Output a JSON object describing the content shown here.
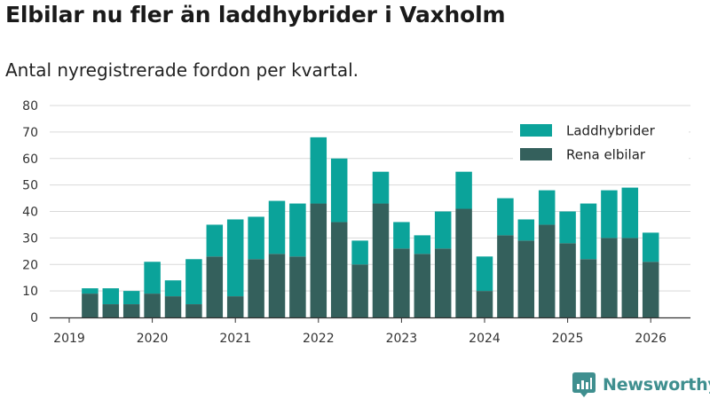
{
  "header": {
    "title": "Elbilar nu fler än laddhybrider i Vaxholm",
    "subtitle": "Antal nyregistrerade fordon per kvartal."
  },
  "brand": {
    "name": "Newsworthy"
  },
  "colors": {
    "laddhybrider": "#0ba39a",
    "rena_elbilar": "#34605c",
    "grid": "#d9d9d9",
    "axis": "#333333"
  },
  "chart_data": {
    "type": "bar",
    "stacked": true,
    "title": "Elbilar nu fler än laddhybrider i Vaxholm",
    "subtitle": "Antal nyregistrerade fordon per kvartal.",
    "xlabel": "",
    "ylabel": "",
    "ylim": [
      0,
      80
    ],
    "yticks": [
      0,
      10,
      20,
      30,
      40,
      50,
      60,
      70,
      80
    ],
    "xticks": [
      "2019",
      "2020",
      "2021",
      "2022",
      "2023",
      "2024",
      "2025",
      "2026"
    ],
    "grid": true,
    "legend_position": "top-right",
    "categories": [
      "2019-Q2",
      "2019-Q3",
      "2019-Q4",
      "2020-Q1",
      "2020-Q2",
      "2020-Q3",
      "2020-Q4",
      "2021-Q1",
      "2021-Q2",
      "2021-Q3",
      "2021-Q4",
      "2022-Q1",
      "2022-Q2",
      "2022-Q3",
      "2022-Q4",
      "2023-Q1",
      "2023-Q2",
      "2023-Q3",
      "2023-Q4",
      "2024-Q1",
      "2024-Q2",
      "2024-Q3",
      "2024-Q4",
      "2025-Q1",
      "2025-Q2",
      "2025-Q3",
      "2025-Q4",
      "2026-Q1"
    ],
    "series": [
      {
        "name": "Rena elbilar",
        "color": "#34605c",
        "values": [
          9,
          5,
          5,
          9,
          8,
          5,
          23,
          8,
          22,
          24,
          23,
          43,
          36,
          20,
          43,
          26,
          24,
          26,
          41,
          10,
          31,
          29,
          35,
          28,
          22,
          30,
          30,
          21
        ]
      },
      {
        "name": "Laddhybrider",
        "color": "#0ba39a",
        "values": [
          2,
          6,
          5,
          12,
          6,
          17,
          12,
          29,
          16,
          20,
          20,
          25,
          24,
          9,
          12,
          10,
          7,
          14,
          14,
          13,
          14,
          8,
          13,
          12,
          21,
          18,
          19,
          11
        ]
      }
    ],
    "legend": [
      "Laddhybrider",
      "Rena elbilar"
    ]
  }
}
